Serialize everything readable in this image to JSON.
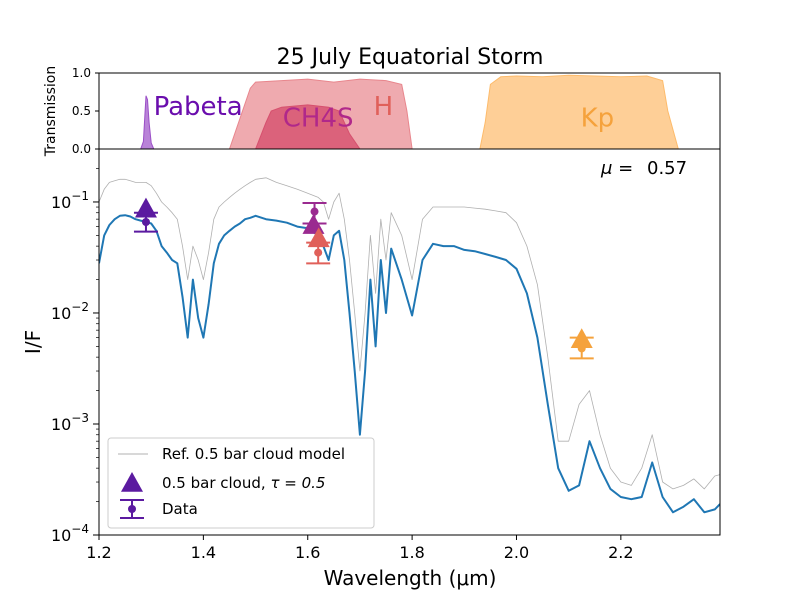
{
  "chart_data": {
    "type": "line",
    "title": "25 July Equatorial Storm",
    "xlabel": "Wavelength (μm)",
    "ylabel": "I/F",
    "xlim": [
      1.2,
      2.39
    ],
    "ylim": [
      0.0001,
      0.3
    ],
    "yscale": "log",
    "x_ticks": [
      1.2,
      1.4,
      1.6,
      1.8,
      2.0,
      2.2
    ],
    "x_tick_labels": [
      "1.2",
      "1.4",
      "1.6",
      "1.8",
      "2.0",
      "2.2"
    ],
    "y_ticks": [
      0.0001,
      0.001,
      0.01,
      0.1
    ],
    "y_tick_labels": [
      {
        "base": "10",
        "exp": "−4"
      },
      {
        "base": "10",
        "exp": "−3"
      },
      {
        "base": "10",
        "exp": "−2"
      },
      {
        "base": "10",
        "exp": "−1"
      }
    ],
    "annotation": {
      "mu_label": "μ =",
      "mu_value": "0.57"
    },
    "legend": {
      "position": "lower-left",
      "entries": [
        {
          "label": "Ref. 0.5 bar cloud model",
          "kind": "line",
          "color": "#b0b0b0"
        },
        {
          "label": "0.5 bar cloud, ",
          "math": "τ = 0.5",
          "kind": "triangle",
          "color": "#5b1aa0"
        },
        {
          "label": "Data",
          "kind": "errorbar",
          "color": "#5b1aa0"
        }
      ]
    },
    "series": [
      {
        "name": "0.5 bar cloud, τ = 0.5",
        "color": "#1f77b4",
        "x": [
          1.2,
          1.21,
          1.22,
          1.23,
          1.24,
          1.25,
          1.26,
          1.27,
          1.28,
          1.29,
          1.3,
          1.31,
          1.32,
          1.33,
          1.34,
          1.35,
          1.36,
          1.37,
          1.38,
          1.39,
          1.4,
          1.41,
          1.42,
          1.43,
          1.44,
          1.45,
          1.46,
          1.47,
          1.48,
          1.49,
          1.5,
          1.52,
          1.54,
          1.56,
          1.58,
          1.6,
          1.62,
          1.63,
          1.64,
          1.65,
          1.66,
          1.67,
          1.68,
          1.69,
          1.7,
          1.71,
          1.72,
          1.73,
          1.74,
          1.75,
          1.76,
          1.78,
          1.8,
          1.82,
          1.84,
          1.86,
          1.88,
          1.9,
          1.92,
          1.94,
          1.96,
          1.98,
          2.0,
          2.02,
          2.04,
          2.06,
          2.08,
          2.1,
          2.12,
          2.14,
          2.16,
          2.18,
          2.2,
          2.22,
          2.24,
          2.26,
          2.28,
          2.3,
          2.32,
          2.34,
          2.36,
          2.38,
          2.39
        ],
        "y": [
          0.028,
          0.05,
          0.062,
          0.07,
          0.075,
          0.076,
          0.074,
          0.07,
          0.068,
          0.066,
          0.064,
          0.055,
          0.04,
          0.035,
          0.03,
          0.028,
          0.014,
          0.006,
          0.02,
          0.009,
          0.006,
          0.012,
          0.028,
          0.042,
          0.05,
          0.055,
          0.06,
          0.064,
          0.07,
          0.072,
          0.075,
          0.07,
          0.068,
          0.065,
          0.06,
          0.058,
          0.05,
          0.04,
          0.03,
          0.05,
          0.055,
          0.03,
          0.01,
          0.003,
          0.0008,
          0.003,
          0.02,
          0.005,
          0.03,
          0.01,
          0.038,
          0.02,
          0.0095,
          0.03,
          0.042,
          0.04,
          0.04,
          0.037,
          0.036,
          0.034,
          0.032,
          0.03,
          0.025,
          0.015,
          0.006,
          0.0015,
          0.0004,
          0.00025,
          0.00028,
          0.0007,
          0.0004,
          0.00026,
          0.00022,
          0.00021,
          0.00022,
          0.00045,
          0.00022,
          0.00016,
          0.00018,
          0.00021,
          0.00016,
          0.00017,
          0.00019
        ]
      },
      {
        "name": "Ref. 0.5 bar cloud model",
        "color": "#b0b0b0",
        "x": [
          1.2,
          1.21,
          1.22,
          1.23,
          1.24,
          1.25,
          1.26,
          1.27,
          1.28,
          1.29,
          1.3,
          1.31,
          1.32,
          1.33,
          1.34,
          1.35,
          1.36,
          1.37,
          1.38,
          1.39,
          1.4,
          1.41,
          1.42,
          1.43,
          1.44,
          1.45,
          1.46,
          1.47,
          1.48,
          1.49,
          1.5,
          1.52,
          1.54,
          1.56,
          1.58,
          1.6,
          1.62,
          1.63,
          1.64,
          1.65,
          1.66,
          1.67,
          1.68,
          1.69,
          1.7,
          1.71,
          1.72,
          1.73,
          1.74,
          1.75,
          1.76,
          1.78,
          1.8,
          1.82,
          1.84,
          1.86,
          1.88,
          1.9,
          1.92,
          1.94,
          1.96,
          1.98,
          2.0,
          2.02,
          2.04,
          2.06,
          2.08,
          2.1,
          2.12,
          2.14,
          2.16,
          2.18,
          2.2,
          2.22,
          2.24,
          2.26,
          2.28,
          2.3,
          2.32,
          2.34,
          2.36,
          2.38,
          2.39
        ],
        "y": [
          0.1,
          0.13,
          0.15,
          0.155,
          0.16,
          0.16,
          0.155,
          0.15,
          0.15,
          0.15,
          0.14,
          0.12,
          0.1,
          0.09,
          0.08,
          0.07,
          0.04,
          0.02,
          0.04,
          0.03,
          0.02,
          0.035,
          0.07,
          0.09,
          0.1,
          0.11,
          0.12,
          0.13,
          0.14,
          0.15,
          0.16,
          0.165,
          0.15,
          0.14,
          0.13,
          0.12,
          0.11,
          0.1,
          0.07,
          0.1,
          0.12,
          0.07,
          0.03,
          0.01,
          0.003,
          0.01,
          0.05,
          0.015,
          0.07,
          0.03,
          0.08,
          0.05,
          0.02,
          0.07,
          0.09,
          0.09,
          0.09,
          0.09,
          0.088,
          0.086,
          0.083,
          0.08,
          0.065,
          0.04,
          0.018,
          0.004,
          0.0007,
          0.0007,
          0.0015,
          0.002,
          0.0008,
          0.0004,
          0.0003,
          0.00028,
          0.0004,
          0.0008,
          0.0003,
          0.00026,
          0.00028,
          0.00032,
          0.00026,
          0.00034,
          0.00035
        ]
      }
    ],
    "triangle_markers": [
      {
        "x": 1.29,
        "y": 0.087,
        "color": "#5b1aa0"
      },
      {
        "x": 1.611,
        "y": 0.062,
        "color": "#9a2a90"
      },
      {
        "x": 1.621,
        "y": 0.047,
        "color": "#e0605a"
      },
      {
        "x": 2.125,
        "y": 0.0058,
        "color": "#f5a23c"
      }
    ],
    "data_points": [
      {
        "x": 1.29,
        "y": 0.066,
        "ylo": 0.054,
        "yhi": 0.08,
        "color": "#5b1aa0"
      },
      {
        "x": 1.613,
        "y": 0.082,
        "ylo": 0.064,
        "yhi": 0.098,
        "color": "#9a2a90"
      },
      {
        "x": 1.62,
        "y": 0.035,
        "ylo": 0.028,
        "yhi": 0.043,
        "color": "#e0605a"
      },
      {
        "x": 2.125,
        "y": 0.0048,
        "ylo": 0.0039,
        "yhi": 0.006,
        "color": "#f5a23c"
      }
    ],
    "transmission_panel": {
      "ylabel": "Transmission",
      "ylim": [
        0.0,
        1.0
      ],
      "y_ticks": [
        0.0,
        0.5,
        1.0
      ],
      "y_tick_labels": [
        "0.0",
        "0.5",
        "1.0"
      ],
      "filters": [
        {
          "name": "Pabeta",
          "color": "#9b4fc7",
          "label_color": "#6a0dad",
          "x": [
            1.28,
            1.285,
            1.288,
            1.29,
            1.293,
            1.296,
            1.3,
            1.305
          ],
          "y": [
            0.0,
            0.1,
            0.45,
            0.7,
            0.65,
            0.35,
            0.08,
            0.0
          ]
        },
        {
          "name": "CH4S",
          "color": "#d6506e",
          "label_color": "#b0288a",
          "x": [
            1.5,
            1.52,
            1.53,
            1.55,
            1.6,
            1.64,
            1.66,
            1.68,
            1.7
          ],
          "y": [
            0.0,
            0.35,
            0.5,
            0.55,
            0.58,
            0.55,
            0.5,
            0.2,
            0.0
          ]
        },
        {
          "name": "H",
          "color": "#e8868d",
          "label_color": "#e0605a",
          "x": [
            1.45,
            1.47,
            1.49,
            1.5,
            1.55,
            1.6,
            1.65,
            1.7,
            1.75,
            1.78,
            1.79,
            1.8
          ],
          "y": [
            0.0,
            0.4,
            0.8,
            0.88,
            0.9,
            0.92,
            0.88,
            0.92,
            0.9,
            0.85,
            0.5,
            0.0
          ]
        },
        {
          "name": "Kp",
          "color": "#fdbb6b",
          "label_color": "#f5a23c",
          "x": [
            1.93,
            1.94,
            1.95,
            1.97,
            2.0,
            2.05,
            2.1,
            2.15,
            2.2,
            2.25,
            2.28,
            2.29,
            2.31
          ],
          "y": [
            0.0,
            0.35,
            0.85,
            0.95,
            0.96,
            0.95,
            0.97,
            0.96,
            0.95,
            0.96,
            0.9,
            0.5,
            0.0
          ]
        }
      ]
    }
  }
}
